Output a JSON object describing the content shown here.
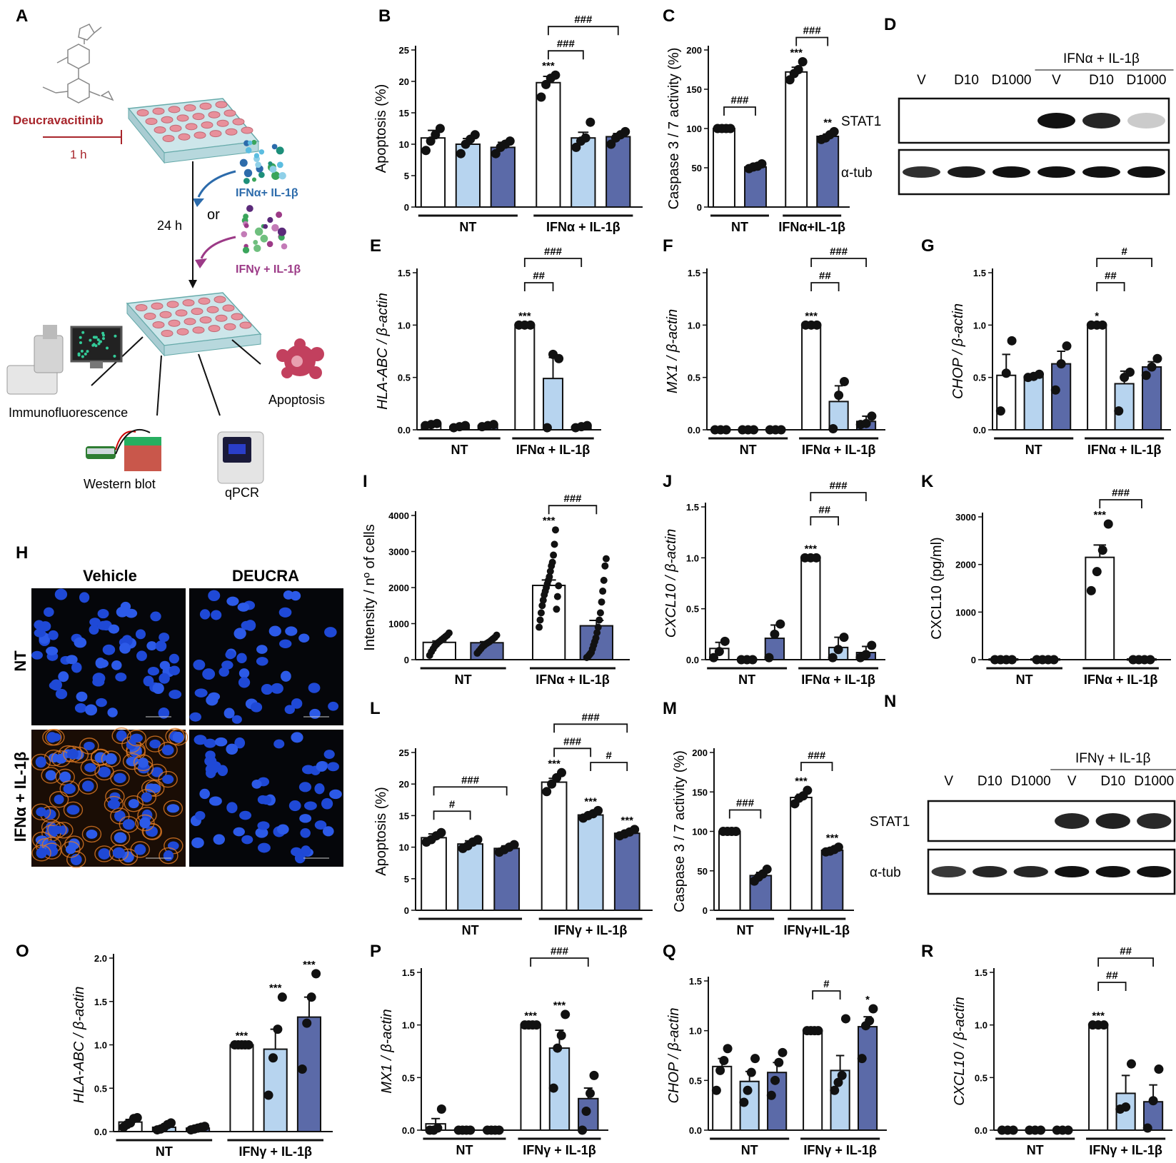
{
  "colors": {
    "vehicle": "#ffffff",
    "d10": "#b7d4ef",
    "d1000": "#5b6aa8",
    "inhib": "#a8262c",
    "alpha": "#2c6bab",
    "gamma": "#9c3a87"
  },
  "schematic": {
    "panel": "A",
    "drug": "Deucravacitinib",
    "pretreat": "1 h",
    "treat": "24 h",
    "or": "or",
    "stim_alpha": "IFNα+ IL-1β",
    "stim_gamma": "IFNγ + IL-1β",
    "readouts": [
      "Immunofluorescence",
      "Western blot",
      "qPCR",
      "Apoptosis"
    ]
  },
  "micro": {
    "panel": "H",
    "cols": [
      "Vehicle",
      "DEUCRA"
    ],
    "rows": [
      "NT",
      "IFNα + IL-1β"
    ]
  },
  "blots": [
    {
      "panel": "D",
      "stim": "IFNα + IL-1β",
      "lanes": [
        "V",
        "D10",
        "D1000",
        "V",
        "D10",
        "D1000"
      ],
      "rows": [
        "STAT1",
        "α-tub"
      ],
      "stat1": [
        0,
        0,
        0,
        1.0,
        0.9,
        0.08
      ],
      "tub": [
        0.85,
        0.95,
        1,
        1,
        1,
        1
      ]
    },
    {
      "panel": "N",
      "stim": "IFNγ + IL-1β",
      "lanes": [
        "V",
        "D10",
        "D1000",
        "V",
        "D10",
        "D1000"
      ],
      "rows": [
        "STAT1",
        "α-tub"
      ],
      "stat1": [
        0,
        0,
        0,
        0.9,
        0.92,
        0.88
      ],
      "tub": [
        0.8,
        0.9,
        0.9,
        1,
        1,
        1
      ]
    }
  ],
  "chart_data": [
    {
      "panel": "B",
      "type": "bar",
      "ylabel": "Apoptosis (%)",
      "ylim": [
        0,
        25
      ],
      "yticks": [
        "0",
        "5",
        "10",
        "15",
        "20",
        "25"
      ],
      "groups": [
        "NT",
        "IFNα + IL-1β"
      ],
      "colors": [
        "w",
        "l",
        "d",
        "w",
        "l",
        "d"
      ],
      "values": [
        11,
        10,
        9.5,
        19.8,
        11,
        11.2
      ],
      "errors": [
        1.2,
        0.9,
        0.8,
        1,
        0.9,
        0.5
      ],
      "points": [
        [
          9,
          10.5,
          11.5,
          12.5
        ],
        [
          8.5,
          10,
          10.8,
          11.5
        ],
        [
          8.5,
          9.5,
          10,
          10.5
        ],
        [
          17.5,
          19.5,
          20.5,
          21
        ],
        [
          9.5,
          10.5,
          11,
          13.5
        ],
        [
          10,
          11,
          11.5,
          12
        ]
      ],
      "stars": [
        "",
        "",
        "",
        "***",
        "",
        ""
      ],
      "brackets": [
        [
          3,
          4,
          "###"
        ],
        [
          3,
          5,
          "###"
        ]
      ]
    },
    {
      "panel": "C",
      "type": "bar",
      "ylabel": "Caspase 3 / 7 activity (%)",
      "ylim": [
        0,
        200
      ],
      "yticks": [
        "0",
        "50",
        "100",
        "150",
        "200"
      ],
      "groups": [
        "NT",
        "IFNα+IL-1β"
      ],
      "colors": [
        "w",
        "d",
        "w",
        "d"
      ],
      "values": [
        100,
        51,
        172,
        90
      ],
      "errors": [
        0,
        2,
        6,
        3
      ],
      "points": [
        [
          100,
          100,
          100,
          100
        ],
        [
          49,
          51,
          52,
          55
        ],
        [
          162,
          170,
          175,
          185
        ],
        [
          86,
          88,
          92,
          96
        ]
      ],
      "stars": [
        "",
        "",
        "***",
        "**"
      ],
      "brackets": [
        [
          0,
          1,
          "###"
        ],
        [
          2,
          3,
          "###"
        ]
      ]
    },
    {
      "panel": "E",
      "type": "bar",
      "ylabel": "HLA-ABC / β-actin",
      "italic": true,
      "ylim": [
        0,
        1.5
      ],
      "yticks": [
        "0.0",
        "0.5",
        "1.0",
        "1.5"
      ],
      "groups": [
        "NT",
        "IFNα + IL-1β"
      ],
      "colors": [
        "w",
        "l",
        "d",
        "w",
        "l",
        "d"
      ],
      "values": [
        0.05,
        0.03,
        0.04,
        1.0,
        0.49,
        0.03
      ],
      "errors": [
        0.01,
        0.01,
        0.01,
        0,
        0.2,
        0.01
      ],
      "points": [
        [
          0.04,
          0.05,
          0.06
        ],
        [
          0.02,
          0.03,
          0.04
        ],
        [
          0.03,
          0.04,
          0.05
        ],
        [
          1,
          1,
          1
        ],
        [
          0.02,
          0.72,
          0.68
        ],
        [
          0.02,
          0.03,
          0.04
        ]
      ],
      "stars": [
        "",
        "",
        "",
        "***",
        "",
        ""
      ],
      "brackets": [
        [
          3,
          4,
          "##"
        ],
        [
          3,
          5,
          "###"
        ]
      ]
    },
    {
      "panel": "F",
      "type": "bar",
      "ylabel": "MX1 / β-actin",
      "italic": true,
      "ylim": [
        0,
        1.5
      ],
      "yticks": [
        "0.0",
        "0.5",
        "1.0",
        "1.5"
      ],
      "groups": [
        "NT",
        "IFNα + IL-1β"
      ],
      "colors": [
        "w",
        "l",
        "d",
        "w",
        "l",
        "d"
      ],
      "values": [
        0,
        0,
        0,
        1.0,
        0.27,
        0.08
      ],
      "errors": [
        0,
        0,
        0,
        0,
        0.15,
        0.05
      ],
      "points": [
        [
          0,
          0,
          0
        ],
        [
          0,
          0,
          0
        ],
        [
          0,
          0,
          0
        ],
        [
          1,
          1,
          1
        ],
        [
          0.01,
          0.33,
          0.46
        ],
        [
          0.05,
          0.06,
          0.13
        ]
      ],
      "stars": [
        "",
        "",
        "",
        "***",
        "",
        ""
      ],
      "brackets": [
        [
          3,
          4,
          "##"
        ],
        [
          3,
          5,
          "###"
        ]
      ]
    },
    {
      "panel": "G",
      "type": "bar",
      "ylabel": "CHOP / β-actin",
      "italic": true,
      "ylim": [
        0,
        1.5
      ],
      "yticks": [
        "0.0",
        "0.5",
        "1.0",
        "1.5"
      ],
      "groups": [
        "NT",
        "IFNα + IL-1β"
      ],
      "colors": [
        "w",
        "l",
        "d",
        "w",
        "l",
        "d"
      ],
      "values": [
        0.52,
        0.51,
        0.63,
        1.0,
        0.44,
        0.6
      ],
      "errors": [
        0.2,
        0.02,
        0.12,
        0,
        0.12,
        0.05
      ],
      "points": [
        [
          0.18,
          0.54,
          0.85
        ],
        [
          0.5,
          0.51,
          0.53
        ],
        [
          0.38,
          0.63,
          0.8
        ],
        [
          1,
          1,
          1
        ],
        [
          0.18,
          0.5,
          0.55
        ],
        [
          0.52,
          0.6,
          0.68
        ]
      ],
      "stars": [
        "",
        "",
        "",
        "*",
        "",
        ""
      ],
      "brackets": [
        [
          3,
          4,
          "##"
        ],
        [
          3,
          5,
          "#"
        ]
      ]
    },
    {
      "panel": "I",
      "type": "bar",
      "ylabel": "Intensity / nº of cells",
      "ylim": [
        0,
        4000
      ],
      "yticks": [
        "0",
        "1000",
        "2000",
        "3000",
        "4000"
      ],
      "groups": [
        "NT",
        "IFNα + IL-1β"
      ],
      "colors": [
        "w",
        "d",
        "w",
        "d"
      ],
      "values": [
        480,
        470,
        2060,
        940
      ],
      "errors": [
        40,
        30,
        150,
        150
      ],
      "points": [
        [
          120,
          220,
          300,
          380,
          430,
          480,
          520,
          560,
          600,
          640,
          680,
          740
        ],
        [
          180,
          240,
          300,
          360,
          400,
          440,
          470,
          500,
          540,
          580,
          620,
          680
        ],
        [
          900,
          1100,
          1300,
          1500,
          1650,
          1800,
          1900,
          2000,
          2100,
          2200,
          2300,
          2450,
          2600,
          2700,
          2900,
          3200,
          3600,
          1400,
          1750,
          2050
        ],
        [
          60,
          80,
          120,
          160,
          200,
          300,
          400,
          500,
          600,
          750,
          900,
          1100,
          1300,
          1600,
          1900,
          2200,
          2600,
          2800
        ]
      ],
      "stars": [
        "",
        "",
        "***",
        ""
      ],
      "brackets": [
        [
          2,
          3,
          "###"
        ]
      ]
    },
    {
      "panel": "J",
      "type": "bar",
      "ylabel": "CXCL10 / β-actin",
      "italic": true,
      "ylim": [
        0,
        1.5
      ],
      "yticks": [
        "0.0",
        "0.5",
        "1.0",
        "1.5"
      ],
      "groups": [
        "NT",
        "IFNα + IL-1β"
      ],
      "colors": [
        "w",
        "l",
        "d",
        "w",
        "l",
        "d"
      ],
      "values": [
        0.11,
        0.0,
        0.21,
        1.0,
        0.12,
        0.07
      ],
      "errors": [
        0.06,
        0,
        0.13,
        0,
        0.1,
        0.06
      ],
      "points": [
        [
          0.02,
          0.08,
          0.18
        ],
        [
          0,
          0,
          0
        ],
        [
          0.02,
          0.25,
          0.35
        ],
        [
          1,
          1,
          1
        ],
        [
          0.02,
          0.1,
          0.22
        ],
        [
          0.02,
          0.05,
          0.14
        ]
      ],
      "stars": [
        "",
        "",
        "",
        "***",
        "",
        ""
      ],
      "brackets": [
        [
          3,
          4,
          "##"
        ],
        [
          3,
          5,
          "###"
        ]
      ]
    },
    {
      "panel": "K",
      "type": "bar",
      "ylabel": "CXCL10 (pg/ml)",
      "ylim": [
        0,
        3000
      ],
      "yticks": [
        "0",
        "1000",
        "2000",
        "3000"
      ],
      "groups": [
        "NT",
        "IFNα + IL-1β"
      ],
      "colors": [
        "w",
        "d",
        "w",
        "d"
      ],
      "values": [
        0,
        0,
        2150,
        0
      ],
      "errors": [
        0,
        0,
        260,
        0
      ],
      "points": [
        [
          0,
          0,
          0,
          0
        ],
        [
          0,
          0,
          0,
          0
        ],
        [
          1450,
          1850,
          2300,
          2850
        ],
        [
          0,
          0,
          0,
          0
        ]
      ],
      "stars": [
        "",
        "",
        "***",
        ""
      ],
      "brackets": [
        [
          2,
          3,
          "###"
        ]
      ]
    },
    {
      "panel": "L",
      "type": "bar",
      "ylabel": "Apoptosis (%)",
      "ylim": [
        0,
        25
      ],
      "yticks": [
        "0",
        "5",
        "10",
        "15",
        "20",
        "25"
      ],
      "groups": [
        "NT",
        "IFNγ + IL-1β"
      ],
      "colors": [
        "w",
        "l",
        "d",
        "w",
        "l",
        "d"
      ],
      "values": [
        11.5,
        10.5,
        9.8,
        20.3,
        15.1,
        12.2
      ],
      "errors": [
        0.6,
        0.5,
        0.4,
        0.6,
        0.3,
        0.3
      ],
      "points": [
        [
          10.8,
          11.2,
          11.8,
          12.3
        ],
        [
          9.8,
          10.2,
          10.8,
          11.2
        ],
        [
          9.2,
          9.6,
          10,
          10.4
        ],
        [
          18.8,
          20,
          21,
          21.8
        ],
        [
          14.6,
          15,
          15.3,
          15.8
        ],
        [
          11.8,
          12.1,
          12.4,
          12.8
        ]
      ],
      "stars": [
        "",
        "",
        "",
        "***",
        "***",
        "***"
      ],
      "brackets": [
        [
          0,
          2,
          "###"
        ],
        [
          0,
          1,
          "#"
        ],
        [
          3,
          4,
          "###"
        ],
        [
          3,
          5,
          "###"
        ],
        [
          4,
          5,
          "#"
        ]
      ]
    },
    {
      "panel": "M",
      "type": "bar",
      "ylabel": "Caspase 3 / 7 activity (%)",
      "ylim": [
        0,
        200
      ],
      "yticks": [
        "0",
        "50",
        "100",
        "150",
        "200"
      ],
      "groups": [
        "NT",
        "IFNγ+IL-1β"
      ],
      "colors": [
        "w",
        "d",
        "w",
        "d"
      ],
      "values": [
        100,
        44,
        143,
        76
      ],
      "errors": [
        0,
        4,
        4,
        1.5
      ],
      "points": [
        [
          100,
          100,
          100,
          100
        ],
        [
          37,
          42,
          46,
          52
        ],
        [
          135,
          142,
          145,
          152
        ],
        [
          74,
          75,
          77,
          80
        ]
      ],
      "stars": [
        "",
        "",
        "***",
        "***"
      ],
      "brackets": [
        [
          0,
          1,
          "###"
        ],
        [
          2,
          3,
          "###"
        ]
      ]
    },
    {
      "panel": "O",
      "type": "bar",
      "ylabel": "HLA-ABC / β-actin",
      "italic": true,
      "ylim": [
        0,
        2
      ],
      "yticks": [
        "0.0",
        "0.5",
        "1.0",
        "1.5",
        "2.0"
      ],
      "groups": [
        "NT",
        "IFNγ + IL-1β"
      ],
      "colors": [
        "w",
        "l",
        "d",
        "w",
        "l",
        "d"
      ],
      "values": [
        0.11,
        0.05,
        0.04,
        1.0,
        0.95,
        1.32
      ],
      "errors": [
        0.03,
        0.02,
        0.01,
        0,
        0.23,
        0.23
      ],
      "points": [
        [
          0.05,
          0.08,
          0.1,
          0.15,
          0.16
        ],
        [
          0.02,
          0.03,
          0.05,
          0.08,
          0.1
        ],
        [
          0.02,
          0.03,
          0.04,
          0.05,
          0.06
        ],
        [
          1,
          1,
          1,
          1,
          1
        ],
        [
          0.42,
          0.85,
          1.18,
          1.55
        ],
        [
          0.72,
          1.25,
          1.55,
          1.82
        ]
      ],
      "stars": [
        "",
        "",
        "",
        "***",
        "***",
        "***"
      ],
      "brackets": []
    },
    {
      "panel": "P",
      "type": "bar",
      "ylabel": "MX1 / β-actin",
      "italic": true,
      "ylim": [
        0,
        1.5
      ],
      "yticks": [
        "0.0",
        "0.5",
        "1.0",
        "1.5"
      ],
      "groups": [
        "NT",
        "IFNγ + IL-1β"
      ],
      "colors": [
        "w",
        "l",
        "d",
        "w",
        "l",
        "d"
      ],
      "values": [
        0.06,
        0,
        0,
        1.0,
        0.78,
        0.3
      ],
      "errors": [
        0.05,
        0,
        0,
        0,
        0.17,
        0.1
      ],
      "points": [
        [
          0,
          0,
          0.02,
          0.2
        ],
        [
          0,
          0,
          0,
          0
        ],
        [
          0,
          0,
          0,
          0
        ],
        [
          1,
          1,
          1,
          1
        ],
        [
          0.4,
          0.78,
          0.9,
          1.1
        ],
        [
          0,
          0.18,
          0.35,
          0.52
        ]
      ],
      "stars": [
        "",
        "",
        "",
        "***",
        "***",
        ""
      ],
      "brackets": [
        [
          3,
          5,
          "###"
        ]
      ]
    },
    {
      "panel": "Q",
      "type": "bar",
      "ylabel": "CHOP / β-actin",
      "italic": true,
      "ylim": [
        0,
        1.5
      ],
      "yticks": [
        "0.0",
        "0.5",
        "1.0",
        "1.5"
      ],
      "groups": [
        "NT",
        "IFNγ + IL-1β"
      ],
      "colors": [
        "w",
        "l",
        "d",
        "w",
        "l",
        "d"
      ],
      "values": [
        0.64,
        0.49,
        0.58,
        1.0,
        0.6,
        1.04
      ],
      "errors": [
        0.08,
        0.1,
        0.1,
        0,
        0.15,
        0.1
      ],
      "points": [
        [
          0.4,
          0.6,
          0.7,
          0.82
        ],
        [
          0.28,
          0.4,
          0.58,
          0.72
        ],
        [
          0.35,
          0.5,
          0.68,
          0.78
        ],
        [
          1,
          1,
          1,
          1
        ],
        [
          0.4,
          0.48,
          0.55,
          1.12
        ],
        [
          0.72,
          1.05,
          1.1,
          1.22
        ]
      ],
      "stars": [
        "",
        "",
        "",
        "",
        "",
        "*"
      ],
      "brackets": [
        [
          3,
          4,
          "#"
        ]
      ]
    },
    {
      "panel": "R",
      "type": "bar",
      "ylabel": "CXCL10 / β-actin",
      "italic": true,
      "ylim": [
        0,
        1.5
      ],
      "yticks": [
        "0.0",
        "0.5",
        "1.0",
        "1.5"
      ],
      "groups": [
        "NT",
        "IFNγ + IL-1β"
      ],
      "colors": [
        "w",
        "l",
        "d",
        "w",
        "l",
        "d"
      ],
      "values": [
        0,
        0,
        0,
        1.0,
        0.35,
        0.27
      ],
      "errors": [
        0,
        0,
        0,
        0,
        0.17,
        0.16
      ],
      "points": [
        [
          0,
          0,
          0
        ],
        [
          0,
          0,
          0
        ],
        [
          0,
          0,
          0
        ],
        [
          1,
          1,
          1
        ],
        [
          0.2,
          0.22,
          0.63
        ],
        [
          0.02,
          0.28,
          0.58
        ]
      ],
      "stars": [
        "",
        "",
        "",
        "***",
        "",
        ""
      ],
      "brackets": [
        [
          3,
          4,
          "##"
        ],
        [
          3,
          5,
          "##"
        ]
      ]
    }
  ]
}
